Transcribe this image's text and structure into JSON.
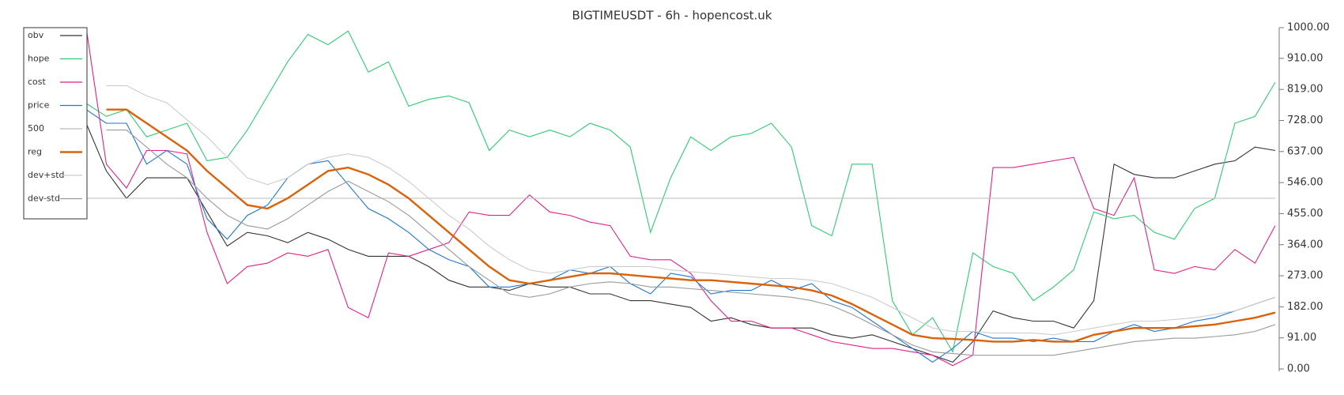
{
  "chart_data": {
    "type": "line",
    "title": "BIGTIMEUSDT - 6h - hopencost.uk",
    "ylim": [
      0,
      1000
    ],
    "yticks": [
      {
        "value": 0,
        "label": "0.00"
      },
      {
        "value": 91,
        "label": "91.00"
      },
      {
        "value": 182,
        "label": "182.00"
      },
      {
        "value": 273,
        "label": "273.00"
      },
      {
        "value": 364,
        "label": "364.00"
      },
      {
        "value": 455,
        "label": "455.00"
      },
      {
        "value": 546,
        "label": "546.00"
      },
      {
        "value": 637,
        "label": "637.00"
      },
      {
        "value": 728,
        "label": "728.00"
      },
      {
        "value": 819,
        "label": "819.00"
      },
      {
        "value": 910,
        "label": "910.00"
      },
      {
        "value": 1000,
        "label": "1000.00"
      }
    ],
    "legend": "top-left",
    "series": [
      {
        "name": "obv",
        "color": "#333333",
        "values": [
          720,
          580,
          500,
          560,
          560,
          560,
          460,
          360,
          400,
          390,
          370,
          400,
          380,
          350,
          330,
          330,
          330,
          300,
          260,
          240,
          240,
          230,
          250,
          240,
          240,
          220,
          220,
          200,
          200,
          190,
          180,
          140,
          150,
          130,
          120,
          120,
          120,
          100,
          90,
          100,
          80,
          60,
          40,
          20,
          80,
          170,
          150,
          140,
          140,
          120,
          200,
          600,
          570,
          560,
          560,
          580,
          600,
          610,
          650,
          640
        ]
      },
      {
        "name": "hope",
        "color": "#2ecc71",
        "values": [
          778,
          740,
          760,
          680,
          700,
          720,
          610,
          620,
          700,
          800,
          900,
          980,
          950,
          990,
          870,
          900,
          770,
          790,
          800,
          780,
          640,
          700,
          680,
          700,
          680,
          720,
          700,
          650,
          400,
          560,
          680,
          640,
          680,
          690,
          720,
          650,
          420,
          390,
          600,
          600,
          200,
          100,
          150,
          50,
          340,
          300,
          280,
          200,
          240,
          290,
          460,
          440,
          450,
          400,
          380,
          470,
          500,
          720,
          740,
          840
        ]
      },
      {
        "name": "cost",
        "color": "#e0218a",
        "values": [
          1000,
          600,
          530,
          640,
          640,
          630,
          400,
          250,
          300,
          310,
          340,
          330,
          350,
          180,
          150,
          340,
          330,
          350,
          370,
          460,
          450,
          450,
          510,
          460,
          450,
          430,
          420,
          330,
          320,
          320,
          280,
          200,
          140,
          140,
          120,
          120,
          100,
          80,
          70,
          60,
          60,
          50,
          40,
          10,
          40,
          590,
          590,
          600,
          610,
          620,
          470,
          450,
          560,
          290,
          280,
          300,
          290,
          350,
          310,
          420
        ]
      },
      {
        "name": "price",
        "color": "#1f77d4",
        "values": [
          760,
          720,
          720,
          600,
          640,
          600,
          440,
          380,
          450,
          480,
          560,
          600,
          610,
          540,
          470,
          440,
          400,
          350,
          320,
          300,
          240,
          240,
          250,
          260,
          290,
          280,
          300,
          250,
          220,
          280,
          270,
          220,
          230,
          230,
          260,
          230,
          250,
          200,
          180,
          140,
          100,
          60,
          20,
          60,
          110,
          90,
          90,
          80,
          90,
          80,
          80,
          110,
          130,
          110,
          120,
          140,
          150,
          170,
          190,
          210
        ]
      },
      {
        "name": "500",
        "color": "#bbbbbb",
        "values": [
          500,
          500,
          500,
          500,
          500,
          500,
          500,
          500,
          500,
          500,
          500,
          500,
          500,
          500,
          500,
          500,
          500,
          500,
          500,
          500,
          500,
          500,
          500,
          500,
          500,
          500,
          500,
          500,
          500,
          500,
          500,
          500,
          500,
          500,
          500,
          500,
          500,
          500,
          500,
          500,
          500,
          500,
          500,
          500,
          500,
          500,
          500,
          500,
          500,
          500,
          500,
          500,
          500,
          500,
          500,
          500,
          500,
          500,
          500,
          500
        ]
      },
      {
        "name": "reg",
        "color": "#d9620a",
        "values": [
          null,
          760,
          760,
          720,
          680,
          640,
          580,
          530,
          480,
          470,
          500,
          540,
          580,
          590,
          570,
          540,
          500,
          450,
          400,
          350,
          300,
          260,
          250,
          260,
          270,
          280,
          280,
          275,
          270,
          265,
          260,
          260,
          255,
          250,
          245,
          240,
          230,
          215,
          190,
          160,
          130,
          100,
          90,
          88,
          85,
          80,
          80,
          85,
          80,
          80,
          100,
          110,
          120,
          120,
          120,
          125,
          130,
          140,
          150,
          165
        ]
      },
      {
        "name": "dev+std",
        "color": "#cccccc",
        "values": [
          null,
          830,
          830,
          800,
          780,
          730,
          680,
          620,
          560,
          540,
          560,
          600,
          620,
          630,
          620,
          590,
          550,
          500,
          450,
          410,
          360,
          320,
          290,
          280,
          290,
          300,
          300,
          300,
          300,
          290,
          285,
          280,
          275,
          270,
          265,
          265,
          260,
          250,
          230,
          210,
          180,
          150,
          120,
          110,
          110,
          105,
          105,
          105,
          100,
          110,
          120,
          130,
          140,
          140,
          145,
          150,
          160,
          170,
          190,
          210
        ]
      },
      {
        "name": "dev-std",
        "color": "#999999",
        "values": [
          null,
          700,
          700,
          650,
          600,
          560,
          500,
          450,
          420,
          410,
          440,
          480,
          520,
          550,
          520,
          490,
          450,
          400,
          350,
          300,
          260,
          220,
          210,
          220,
          240,
          250,
          255,
          250,
          240,
          240,
          235,
          230,
          225,
          220,
          215,
          210,
          200,
          185,
          160,
          130,
          100,
          70,
          50,
          45,
          40,
          40,
          40,
          40,
          40,
          50,
          60,
          70,
          80,
          85,
          90,
          90,
          95,
          100,
          110,
          130
        ]
      }
    ]
  }
}
